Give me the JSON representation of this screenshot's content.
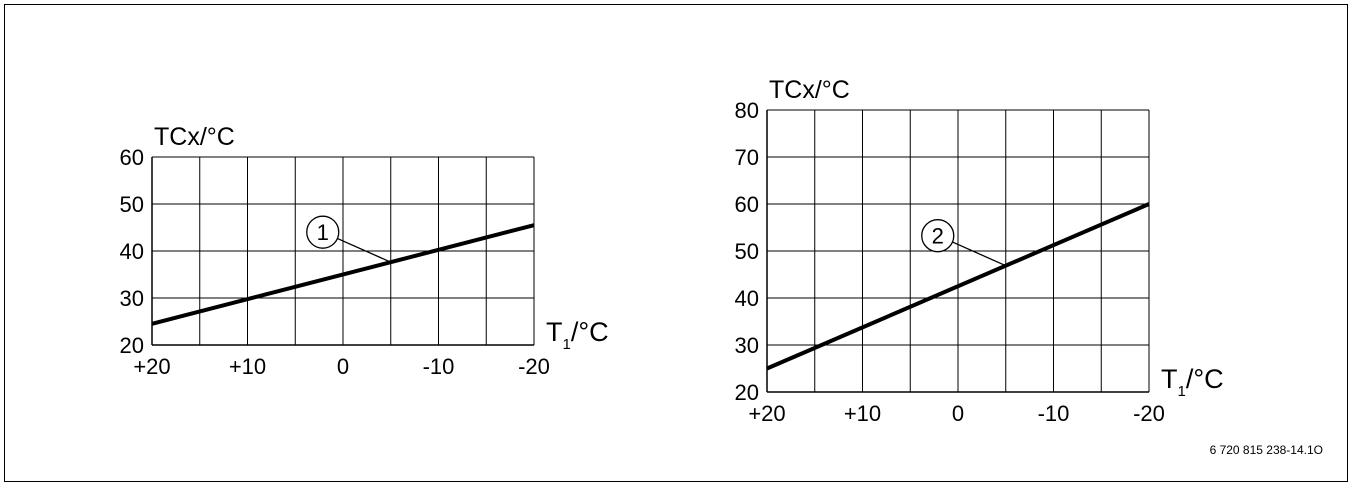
{
  "chart_data": [
    {
      "type": "line",
      "ylabel": "TCx/°C",
      "xlabel": "T",
      "xlabel_sub": "1",
      "xlabel_unit": "/°C",
      "x_tick_labels": [
        "+20",
        "+10",
        "0",
        "-10",
        "-20"
      ],
      "y_tick_labels": [
        "20",
        "30",
        "40",
        "50",
        "60"
      ],
      "xlim": [
        20,
        -20
      ],
      "ylim": [
        20,
        60
      ],
      "grid": true,
      "series": [
        {
          "marker": "1",
          "x": [
            20,
            -20
          ],
          "y": [
            24.5,
            45.5
          ]
        }
      ]
    },
    {
      "type": "line",
      "ylabel": "TCx/°C",
      "xlabel": "T",
      "xlabel_sub": "1",
      "xlabel_unit": "/°C",
      "x_tick_labels": [
        "+20",
        "+10",
        "0",
        "-10",
        "-20"
      ],
      "y_tick_labels": [
        "20",
        "30",
        "40",
        "50",
        "60",
        "70",
        "80"
      ],
      "xlim": [
        20,
        -20
      ],
      "ylim": [
        20,
        80
      ],
      "grid": true,
      "series": [
        {
          "marker": "2",
          "x": [
            20,
            -20
          ],
          "y": [
            25,
            60
          ]
        }
      ]
    }
  ],
  "figure_id": "6 720 815 238-14.1O"
}
